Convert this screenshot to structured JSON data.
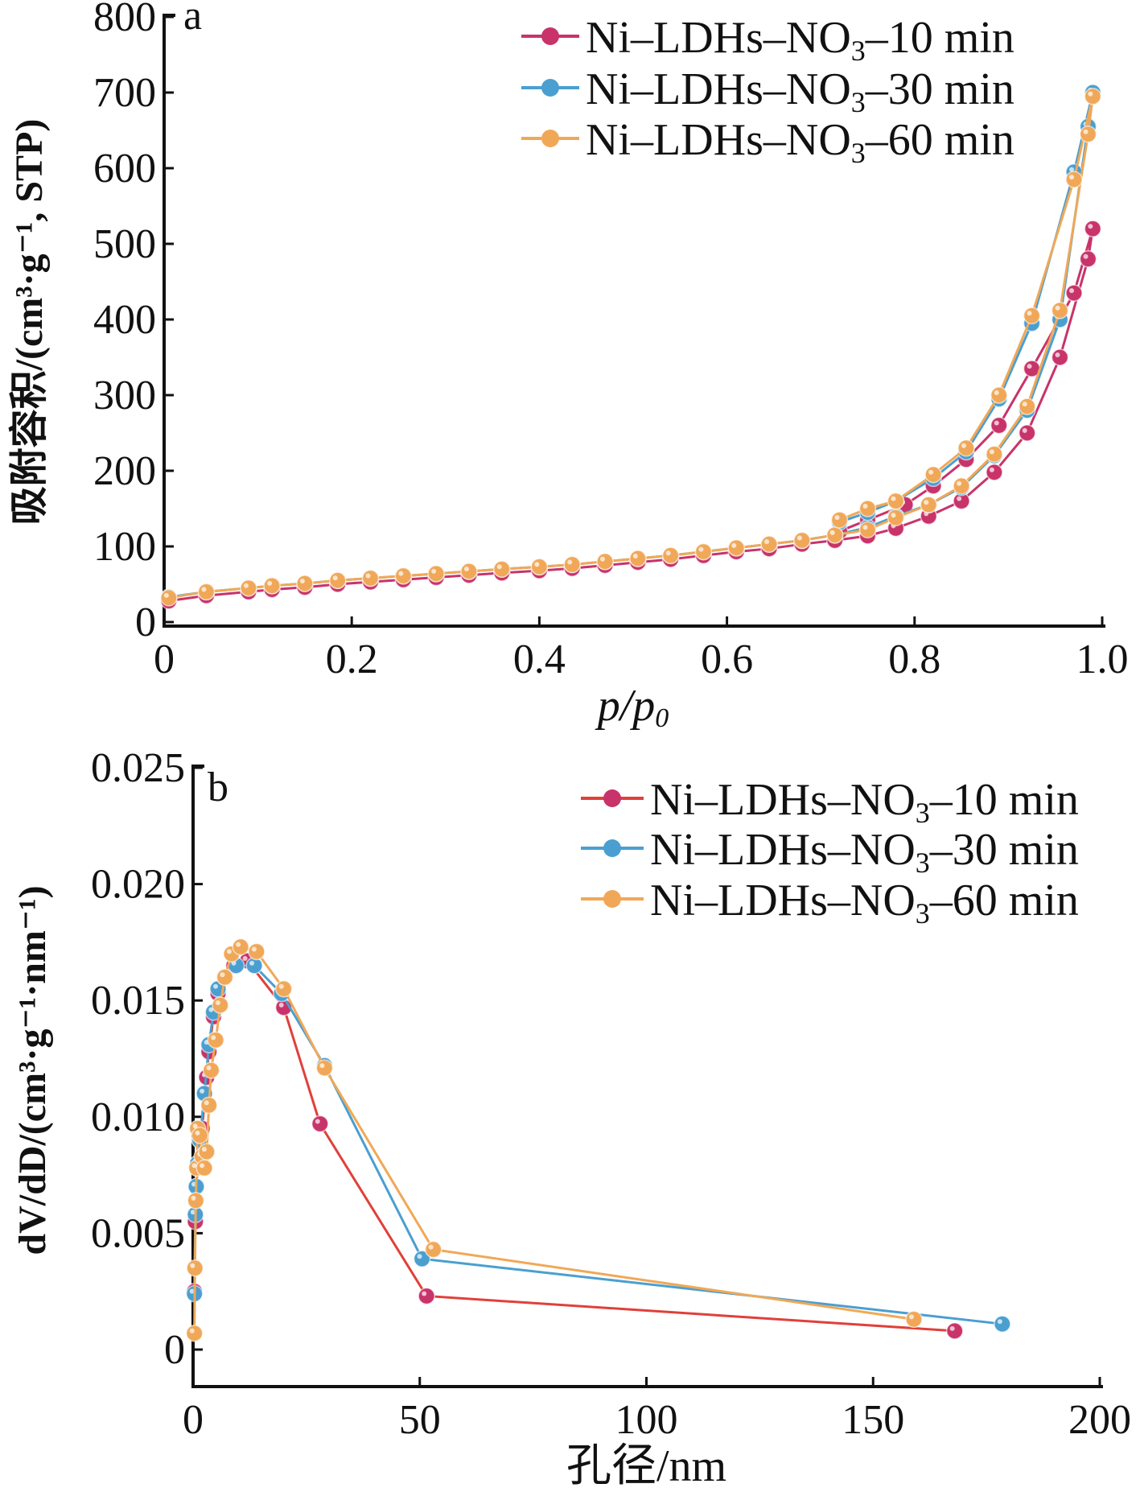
{
  "chart_data": [
    {
      "type": "line",
      "panel_label": "a",
      "xlabel": "p/p0",
      "xlabel_main": "p/p",
      "xlabel_sub": "0",
      "ylabel": "吸附容积/(cm³·g⁻¹, STP)",
      "xlim": [
        0,
        1.0
      ],
      "ylim": [
        0,
        800
      ],
      "xticks": [
        "0",
        "0.2",
        "0.4",
        "0.6",
        "0.8",
        "1.0"
      ],
      "xtick_values": [
        0,
        0.2,
        0.4,
        0.6,
        0.8,
        1.0
      ],
      "yticks": [
        "0",
        "100",
        "200",
        "300",
        "400",
        "500",
        "600",
        "700",
        "800"
      ],
      "ytick_values": [
        0,
        100,
        200,
        300,
        400,
        500,
        600,
        700,
        800
      ],
      "legend": "top-right",
      "series": [
        {
          "name": "Ni-LDHs-NO3-10 min",
          "legend_parts": [
            "Ni–LDHs–NO",
            "3",
            "–10 min"
          ],
          "color": "#c8336a",
          "x": [
            0.005,
            0.045,
            0.09,
            0.115,
            0.15,
            0.185,
            0.22,
            0.255,
            0.29,
            0.325,
            0.36,
            0.4,
            0.435,
            0.47,
            0.505,
            0.54,
            0.575,
            0.61,
            0.645,
            0.68,
            0.715,
            0.75,
            0.78,
            0.815,
            0.85,
            0.885,
            0.92,
            0.955,
            0.985,
            0.99,
            0.97,
            0.925,
            0.89,
            0.855,
            0.82,
            0.79,
            0.75,
            0.72
          ],
          "y": [
            28,
            35,
            40,
            43,
            46,
            50,
            53,
            56,
            59,
            62,
            65,
            68,
            71,
            75,
            79,
            83,
            88,
            93,
            97,
            103,
            108,
            114,
            124,
            140,
            160,
            198,
            250,
            350,
            480,
            520,
            435,
            335,
            260,
            215,
            180,
            155,
            135,
            120
          ]
        },
        {
          "name": "Ni-LDHs-NO3-30 min",
          "legend_parts": [
            "Ni–LDHs–NO",
            "3",
            "–30 min"
          ],
          "color": "#4a9fd0",
          "x": [
            0.005,
            0.045,
            0.09,
            0.115,
            0.15,
            0.185,
            0.22,
            0.255,
            0.29,
            0.325,
            0.36,
            0.4,
            0.435,
            0.47,
            0.505,
            0.54,
            0.575,
            0.61,
            0.645,
            0.68,
            0.715,
            0.75,
            0.78,
            0.815,
            0.85,
            0.885,
            0.92,
            0.955,
            0.985,
            0.99,
            0.97,
            0.925,
            0.89,
            0.855,
            0.82,
            0.78,
            0.75,
            0.72
          ],
          "y": [
            33,
            40,
            45,
            48,
            51,
            55,
            58,
            61,
            64,
            67,
            70,
            73,
            76,
            80,
            84,
            88,
            93,
            98,
            103,
            108,
            115,
            125,
            140,
            155,
            178,
            220,
            280,
            400,
            655,
            700,
            595,
            395,
            295,
            225,
            190,
            160,
            145,
            132
          ]
        },
        {
          "name": "Ni-LDHs-NO3-60 min",
          "legend_parts": [
            "Ni–LDHs–NO",
            "3",
            "–60 min"
          ],
          "color": "#f0a858",
          "x": [
            0.005,
            0.045,
            0.09,
            0.115,
            0.15,
            0.185,
            0.22,
            0.255,
            0.29,
            0.325,
            0.36,
            0.4,
            0.435,
            0.47,
            0.505,
            0.54,
            0.575,
            0.61,
            0.645,
            0.68,
            0.715,
            0.75,
            0.78,
            0.815,
            0.85,
            0.885,
            0.92,
            0.955,
            0.985,
            0.99,
            0.97,
            0.925,
            0.89,
            0.855,
            0.82,
            0.78,
            0.75,
            0.72
          ],
          "y": [
            32,
            40,
            45,
            48,
            51,
            55,
            58,
            61,
            64,
            67,
            70,
            73,
            76,
            80,
            84,
            88,
            93,
            98,
            103,
            108,
            115,
            122,
            138,
            155,
            180,
            222,
            285,
            412,
            645,
            695,
            585,
            405,
            300,
            230,
            195,
            160,
            150,
            135
          ]
        }
      ]
    },
    {
      "type": "line",
      "panel_label": "b",
      "xlabel": "孔径/nm",
      "ylabel": "dV/dD/(cm³·g⁻¹·nm⁻¹)",
      "xlim": [
        0,
        200
      ],
      "ylim": [
        0,
        0.025
      ],
      "xticks": [
        "0",
        "50",
        "100",
        "150",
        "200"
      ],
      "xtick_values": [
        0,
        50,
        100,
        150,
        200
      ],
      "yticks": [
        "0",
        "0.005",
        "0.010",
        "0.015",
        "0.020",
        "0.025"
      ],
      "ytick_values": [
        0,
        0.005,
        0.01,
        0.015,
        0.02,
        0.025
      ],
      "legend": "top-right",
      "series": [
        {
          "name": "Ni-LDHs-NO3-10 min",
          "legend_parts": [
            "Ni–LDHs–NO",
            "3",
            "–10 min"
          ],
          "color": "#c8336a",
          "line_color": "#e0403a",
          "x": [
            0.3,
            0.5,
            0.7,
            1,
            1.5,
            2,
            3,
            3.5,
            4.5,
            5.5,
            7,
            9,
            12,
            20,
            28,
            51.5,
            168
          ],
          "y": [
            0.0025,
            0.0055,
            0.007,
            0.0078,
            0.009,
            0.0095,
            0.0117,
            0.0128,
            0.0143,
            0.0153,
            0.016,
            0.0165,
            0.0167,
            0.0147,
            0.0097,
            0.0023,
            0.0008
          ]
        },
        {
          "name": "Ni-LDHs-NO3-30 min",
          "legend_parts": [
            "Ni–LDHs–NO",
            "3",
            "–30 min"
          ],
          "color": "#4a9fd0",
          "line_color": "#4a9fd0",
          "x": [
            0.3,
            0.5,
            0.7,
            1,
            1.5,
            2.5,
            3.5,
            4.5,
            5.5,
            7,
            9.5,
            13.5,
            19.5,
            29,
            50.5,
            178.5
          ],
          "y": [
            0.0024,
            0.0058,
            0.007,
            0.008,
            0.009,
            0.011,
            0.0131,
            0.0145,
            0.0155,
            0.016,
            0.0165,
            0.0165,
            0.0153,
            0.0122,
            0.0039,
            0.0011
          ]
        },
        {
          "name": "Ni-LDHs-NO3-60 min",
          "legend_parts": [
            "Ni–LDHs–NO",
            "3",
            "–60 min"
          ],
          "color": "#f0a858",
          "line_color": "#f0a858",
          "x": [
            0.3,
            0.4,
            0.6,
            0.8,
            1,
            1.5,
            2,
            2.5,
            3,
            3.5,
            4,
            5,
            6,
            7,
            8.5,
            10.5,
            14,
            20,
            29,
            53,
            159
          ],
          "y": [
            0.0007,
            0.0035,
            0.0064,
            0.0078,
            0.0095,
            0.0092,
            0.0083,
            0.0078,
            0.0085,
            0.0105,
            0.012,
            0.0133,
            0.0148,
            0.016,
            0.017,
            0.0173,
            0.0171,
            0.0155,
            0.0121,
            0.0043,
            0.0013
          ]
        }
      ]
    }
  ]
}
